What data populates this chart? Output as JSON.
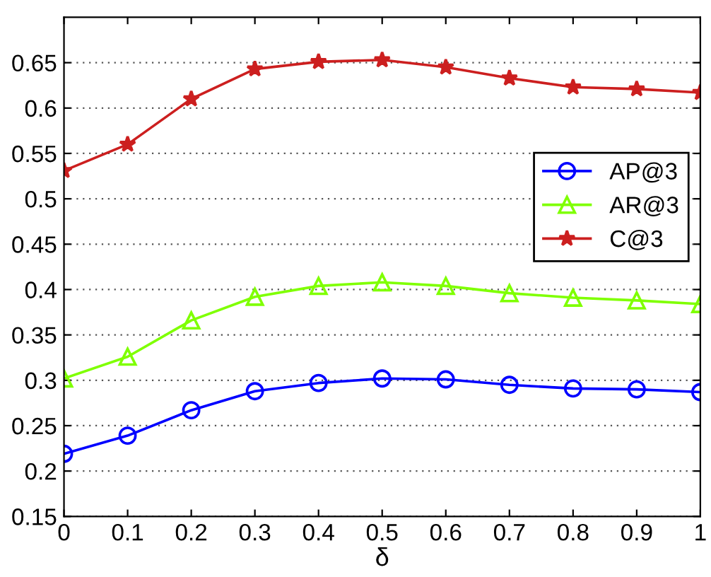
{
  "chart_data": {
    "type": "line",
    "xlabel": "δ",
    "x": [
      0,
      0.1,
      0.2,
      0.3,
      0.4,
      0.5,
      0.6,
      0.7,
      0.8,
      0.9,
      1
    ],
    "series": [
      {
        "name": "AP@3",
        "color": "#0000ff",
        "marker": "circle",
        "values": [
          0.219,
          0.239,
          0.267,
          0.288,
          0.297,
          0.302,
          0.301,
          0.295,
          0.291,
          0.29,
          0.287
        ]
      },
      {
        "name": "AR@3",
        "color": "#7fff00",
        "marker": "triangle",
        "values": [
          0.302,
          0.326,
          0.366,
          0.392,
          0.404,
          0.408,
          0.404,
          0.396,
          0.391,
          0.388,
          0.384
        ]
      },
      {
        "name": "C@3",
        "color": "#cc1f1f",
        "marker": "star",
        "values": [
          0.531,
          0.56,
          0.61,
          0.643,
          0.651,
          0.653,
          0.645,
          0.633,
          0.623,
          0.621,
          0.617
        ]
      }
    ],
    "xlim": [
      0,
      1
    ],
    "xticks": [
      0,
      0.1,
      0.2,
      0.3,
      0.4,
      0.5,
      0.6,
      0.7,
      0.8,
      0.9,
      1
    ],
    "ylim": [
      0.15,
      0.7
    ],
    "yticks": [
      0.15,
      0.2,
      0.25,
      0.3,
      0.35,
      0.4,
      0.45,
      0.5,
      0.55,
      0.6,
      0.65
    ],
    "grid": "y",
    "legend": "right",
    "line_style": "solid"
  }
}
